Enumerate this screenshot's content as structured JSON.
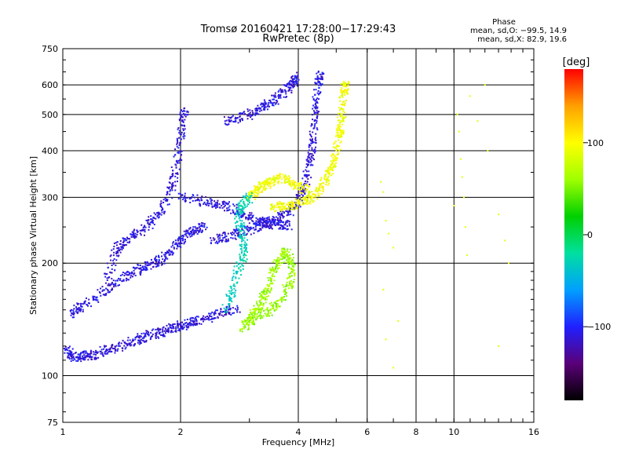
{
  "chart_data": {
    "type": "scatter",
    "title": "Tromsø 20160421 17:28:00−17:29:43",
    "subtitle": "RwPretec (8p)",
    "xlabel": "Frequency [MHz]",
    "ylabel": "Stationary phase Virtual Height [km]",
    "x_scale": "log",
    "y_scale": "log",
    "xlim": [
      1,
      16
    ],
    "ylim": [
      75,
      750
    ],
    "x_ticks": [
      1,
      2,
      4,
      6,
      8,
      10,
      16
    ],
    "x_tick_labels": [
      "1",
      "2",
      "4",
      "6",
      "8",
      "10",
      "16"
    ],
    "y_ticks": [
      75,
      100,
      200,
      300,
      400,
      500,
      600,
      750
    ],
    "y_tick_labels": [
      "75",
      "100",
      "200",
      "300",
      "400",
      "500",
      "600",
      "750"
    ],
    "grid": true,
    "phase_stats": {
      "heading": "Phase",
      "line_o": "mean, sd,O: −99.5, 14.9",
      "line_x": "mean, sd,X:  82.9, 19.6"
    },
    "colorbar": {
      "label": "[deg]",
      "range": [
        -180,
        180
      ],
      "ticks": [
        100,
        0,
        -100
      ],
      "tick_labels": [
        "100",
        "0",
        "−100"
      ],
      "colors": [
        "#000000",
        "#5a0078",
        "#2020ff",
        "#00a0ff",
        "#00e0a0",
        "#00d000",
        "#a0ff00",
        "#ffff00",
        "#ffa000",
        "#ff0000"
      ]
    },
    "series": [
      {
        "points": [
          [
            1.02,
            118
          ],
          [
            1.05,
            113
          ],
          [
            1.1,
            112
          ],
          [
            1.15,
            113
          ],
          [
            1.2,
            114
          ],
          [
            1.3,
            117
          ],
          [
            1.4,
            120
          ],
          [
            1.5,
            123
          ],
          [
            1.6,
            126
          ],
          [
            1.7,
            129
          ],
          [
            1.8,
            131
          ],
          [
            1.9,
            134
          ],
          [
            2.0,
            136
          ],
          [
            2.1,
            138
          ],
          [
            2.2,
            140
          ],
          [
            2.4,
            144
          ],
          [
            2.6,
            148
          ],
          [
            2.8,
            152
          ]
        ],
        "phase": -110
      },
      {
        "points": [
          [
            1.05,
            145
          ],
          [
            1.1,
            152
          ],
          [
            1.2,
            160
          ],
          [
            1.3,
            170
          ],
          [
            1.4,
            180
          ],
          [
            1.5,
            188
          ],
          [
            1.6,
            195
          ],
          [
            1.7,
            200
          ],
          [
            1.8,
            205
          ],
          [
            1.9,
            215
          ],
          [
            2.0,
            230
          ],
          [
            2.1,
            240
          ],
          [
            2.2,
            245
          ],
          [
            2.3,
            250
          ]
        ],
        "phase": -110
      },
      {
        "points": [
          [
            1.3,
            180
          ],
          [
            1.35,
            210
          ],
          [
            1.4,
            225
          ],
          [
            1.5,
            235
          ],
          [
            1.6,
            245
          ],
          [
            1.7,
            260
          ],
          [
            1.8,
            280
          ],
          [
            1.9,
            320
          ],
          [
            1.95,
            360
          ],
          [
            2.0,
            420
          ],
          [
            2.02,
            480
          ],
          [
            2.05,
            510
          ]
        ],
        "phase": -110
      },
      {
        "points": [
          [
            2.0,
            300
          ],
          [
            2.2,
            295
          ],
          [
            2.4,
            290
          ],
          [
            2.6,
            285
          ],
          [
            2.8,
            275
          ],
          [
            3.0,
            265
          ],
          [
            3.2,
            258
          ],
          [
            3.4,
            255
          ],
          [
            3.6,
            253
          ],
          [
            3.8,
            252
          ]
        ],
        "phase": -110
      },
      {
        "points": [
          [
            2.4,
            230
          ],
          [
            2.6,
            235
          ],
          [
            2.8,
            240
          ],
          [
            3.0,
            245
          ],
          [
            3.2,
            252
          ],
          [
            3.4,
            258
          ],
          [
            3.6,
            265
          ],
          [
            3.8,
            275
          ],
          [
            4.0,
            290
          ],
          [
            4.1,
            310
          ],
          [
            4.2,
            340
          ],
          [
            4.3,
            380
          ],
          [
            4.35,
            420
          ],
          [
            4.4,
            480
          ],
          [
            4.45,
            540
          ],
          [
            4.5,
            610
          ],
          [
            4.55,
            640
          ]
        ],
        "phase": -110
      },
      {
        "points": [
          [
            2.6,
            480
          ],
          [
            2.8,
            490
          ],
          [
            3.0,
            500
          ],
          [
            3.2,
            520
          ],
          [
            3.4,
            540
          ],
          [
            3.6,
            560
          ],
          [
            3.8,
            590
          ],
          [
            3.9,
            610
          ],
          [
            3.95,
            630
          ]
        ],
        "phase": -110
      },
      {
        "points": [
          [
            3.4,
            280
          ],
          [
            3.6,
            283
          ],
          [
            3.8,
            285
          ],
          [
            4.0,
            290
          ],
          [
            4.2,
            295
          ],
          [
            4.4,
            305
          ],
          [
            4.6,
            320
          ],
          [
            4.8,
            345
          ],
          [
            4.9,
            370
          ],
          [
            5.0,
            400
          ],
          [
            5.1,
            440
          ],
          [
            5.15,
            480
          ],
          [
            5.2,
            530
          ],
          [
            5.25,
            580
          ],
          [
            5.28,
            600
          ]
        ],
        "phase": 95
      },
      {
        "points": [
          [
            3.0,
            300
          ],
          [
            3.1,
            310
          ],
          [
            3.2,
            320
          ],
          [
            3.3,
            325
          ],
          [
            3.4,
            330
          ],
          [
            3.6,
            340
          ],
          [
            3.8,
            330
          ],
          [
            4.0,
            320
          ],
          [
            4.2,
            315
          ]
        ],
        "phase": 95
      },
      {
        "points": [
          [
            2.9,
            135
          ],
          [
            3.0,
            140
          ],
          [
            3.1,
            148
          ],
          [
            3.2,
            155
          ],
          [
            3.3,
            165
          ],
          [
            3.4,
            180
          ],
          [
            3.5,
            195
          ],
          [
            3.6,
            205
          ],
          [
            3.7,
            215
          ],
          [
            3.8,
            205
          ],
          [
            3.85,
            190
          ],
          [
            3.8,
            175
          ],
          [
            3.6,
            160
          ],
          [
            3.4,
            150
          ],
          [
            3.2,
            145
          ],
          [
            3.0,
            140
          ]
        ],
        "phase": 60
      },
      {
        "points": [
          [
            2.6,
            150
          ],
          [
            2.7,
            165
          ],
          [
            2.8,
            190
          ],
          [
            2.9,
            210
          ],
          [
            2.9,
            230
          ],
          [
            2.85,
            250
          ],
          [
            2.8,
            270
          ],
          [
            2.9,
            290
          ],
          [
            3.0,
            300
          ]
        ],
        "phase": -30
      },
      {
        "points": [
          [
            6.5,
            330
          ],
          [
            6.6,
            310
          ],
          [
            6.7,
            260
          ],
          [
            6.8,
            240
          ],
          [
            7.0,
            220
          ],
          [
            6.6,
            170
          ],
          [
            6.7,
            125
          ],
          [
            7.0,
            105
          ],
          [
            7.2,
            140
          ],
          [
            10.0,
            285
          ],
          [
            10.2,
            500
          ],
          [
            10.3,
            450
          ],
          [
            10.4,
            380
          ],
          [
            10.5,
            340
          ],
          [
            10.6,
            300
          ],
          [
            10.7,
            250
          ],
          [
            10.8,
            210
          ],
          [
            11.0,
            560
          ],
          [
            11.5,
            480
          ],
          [
            12.0,
            600
          ],
          [
            12.2,
            400
          ],
          [
            13.0,
            270
          ],
          [
            13.5,
            230
          ],
          [
            13.8,
            200
          ],
          [
            13.0,
            120
          ]
        ],
        "phase": 90
      }
    ]
  }
}
